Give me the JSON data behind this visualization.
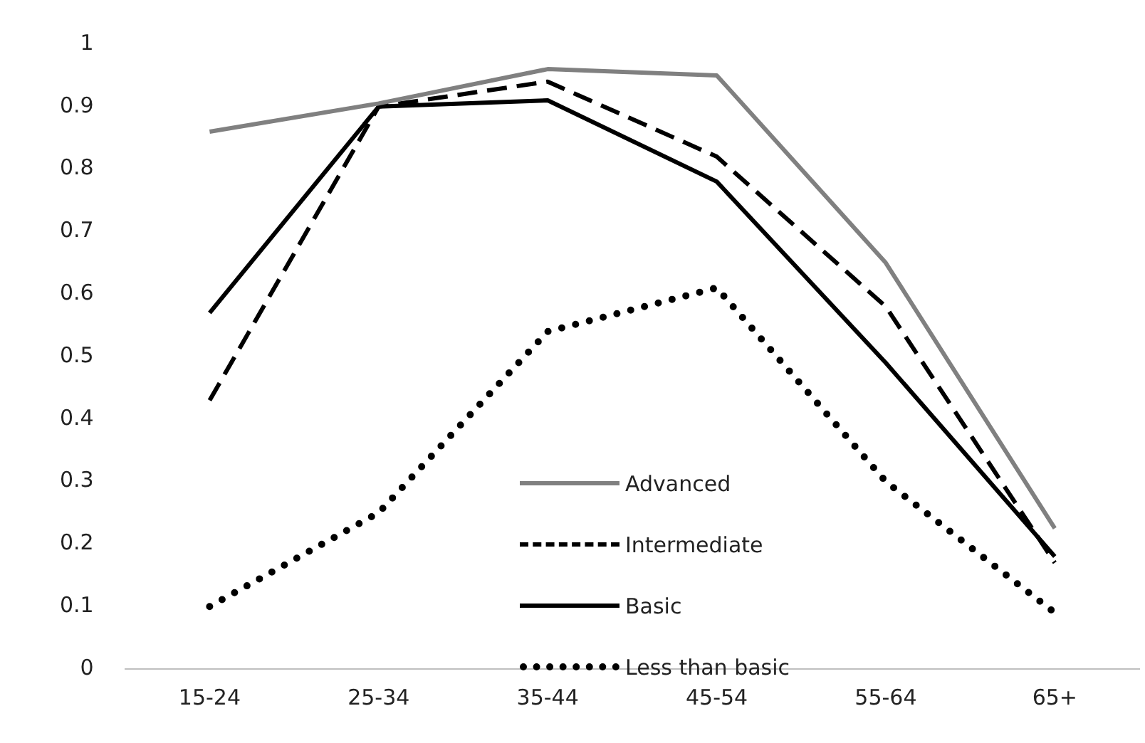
{
  "chart_data": {
    "type": "line",
    "categories": [
      "15-24",
      "25-34",
      "35-44",
      "45-54",
      "55-64",
      "65+"
    ],
    "series": [
      {
        "name": "Advanced",
        "color": "#808080",
        "line_style": "solid",
        "values": [
          0.86,
          0.905,
          0.96,
          0.95,
          0.65,
          0.225
        ]
      },
      {
        "name": "Intermediate",
        "color": "#000000",
        "line_style": "dashed",
        "values": [
          0.43,
          0.9,
          0.94,
          0.82,
          0.58,
          0.17
        ]
      },
      {
        "name": "Basic",
        "color": "#000000",
        "line_style": "solid",
        "values": [
          0.57,
          0.9,
          0.91,
          0.78,
          0.49,
          0.18
        ]
      },
      {
        "name": "Less than basic",
        "color": "#000000",
        "line_style": "dotted",
        "values": [
          0.1,
          0.25,
          0.54,
          0.61,
          0.3,
          0.09
        ]
      }
    ],
    "ylim": [
      0,
      1
    ],
    "yticks": [
      0,
      0.1,
      0.2,
      0.3,
      0.4,
      0.5,
      0.6,
      0.7,
      0.8,
      0.9,
      1
    ],
    "grid": false,
    "legend": "bottom",
    "marker": "none"
  }
}
